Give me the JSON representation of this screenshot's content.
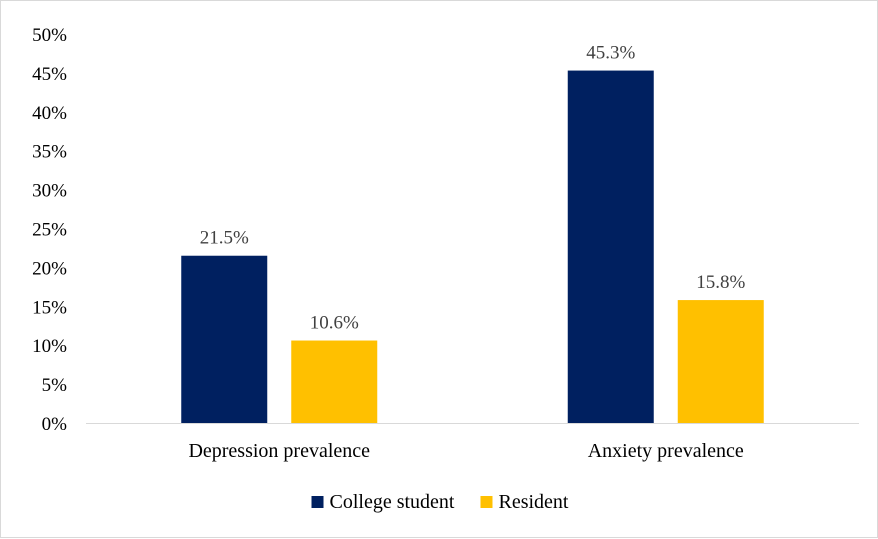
{
  "chart_data": {
    "type": "bar",
    "categories": [
      "Depression prevalence",
      "Anxiety prevalence"
    ],
    "series": [
      {
        "name": "College student",
        "values": [
          21.5,
          45.3
        ],
        "color": "#002060"
      },
      {
        "name": "Resident",
        "values": [
          10.6,
          15.8
        ],
        "color": "#FFC000"
      }
    ],
    "data_labels": [
      [
        "21.5%",
        "45.3%"
      ],
      [
        "10.6%",
        "15.8%"
      ]
    ],
    "y_ticks": [
      "0%",
      "5%",
      "10%",
      "15%",
      "20%",
      "25%",
      "30%",
      "35%",
      "40%",
      "45%",
      "50%"
    ],
    "ylim": [
      0,
      50
    ],
    "grid": false,
    "legend_position": "bottom",
    "title": "",
    "xlabel": "",
    "ylabel": ""
  }
}
